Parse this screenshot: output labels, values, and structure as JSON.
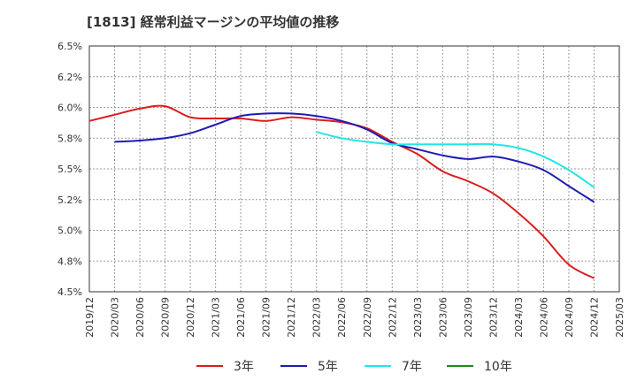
{
  "chart_data": {
    "type": "line",
    "title": "[1813]  経常利益マージンの平均値の推移",
    "xlabel": "",
    "ylabel": "",
    "ylim": [
      4.5,
      6.5
    ],
    "y_ticks": [
      "6.5%",
      "6.2%",
      "6.0%",
      "5.8%",
      "5.5%",
      "5.2%",
      "5.0%",
      "4.8%",
      "4.5%"
    ],
    "x_ticks": [
      "2019/12",
      "2020/03",
      "2020/06",
      "2020/09",
      "2020/12",
      "2021/03",
      "2021/06",
      "2021/09",
      "2021/12",
      "2022/03",
      "2022/06",
      "2022/09",
      "2022/12",
      "2023/03",
      "2023/06",
      "2023/09",
      "2023/12",
      "2024/03",
      "2024/06",
      "2024/09",
      "2024/12",
      "2025/03"
    ],
    "grid": true,
    "legend_position": "bottom",
    "series": [
      {
        "name": "3年",
        "color": "#dd1c1c",
        "x": [
          "2019/12",
          "2020/03",
          "2020/06",
          "2020/09",
          "2020/12",
          "2021/03",
          "2021/06",
          "2021/09",
          "2021/12",
          "2022/03",
          "2022/06",
          "2022/09",
          "2022/12",
          "2023/03",
          "2023/06",
          "2023/09",
          "2023/12",
          "2024/03",
          "2024/06",
          "2024/09",
          "2024/12"
        ],
        "values": [
          5.89,
          5.94,
          5.99,
          6.01,
          5.92,
          5.91,
          5.91,
          5.89,
          5.92,
          5.9,
          5.88,
          5.83,
          5.72,
          5.62,
          5.48,
          5.4,
          5.3,
          5.14,
          4.95,
          4.72,
          4.61
        ]
      },
      {
        "name": "5年",
        "color": "#1c1cb4",
        "x": [
          "2020/03",
          "2020/06",
          "2020/09",
          "2020/12",
          "2021/03",
          "2021/06",
          "2021/09",
          "2021/12",
          "2022/03",
          "2022/06",
          "2022/09",
          "2022/12",
          "2023/03",
          "2023/06",
          "2023/09",
          "2023/12",
          "2024/03",
          "2024/06",
          "2024/09",
          "2024/12"
        ],
        "values": [
          5.72,
          5.73,
          5.75,
          5.79,
          5.86,
          5.93,
          5.95,
          5.95,
          5.93,
          5.89,
          5.82,
          5.71,
          5.66,
          5.61,
          5.58,
          5.6,
          5.56,
          5.49,
          5.36,
          5.23
        ]
      },
      {
        "name": "7年",
        "color": "#22e6e6",
        "x": [
          "2022/03",
          "2022/06",
          "2022/09",
          "2022/12",
          "2023/03",
          "2023/06",
          "2023/09",
          "2023/12",
          "2024/03",
          "2024/06",
          "2024/09",
          "2024/12"
        ],
        "values": [
          5.8,
          5.75,
          5.72,
          5.7,
          5.7,
          5.7,
          5.7,
          5.7,
          5.67,
          5.6,
          5.49,
          5.35
        ]
      },
      {
        "name": "10年",
        "color": "#1c8c1c",
        "x": [],
        "values": []
      }
    ]
  }
}
